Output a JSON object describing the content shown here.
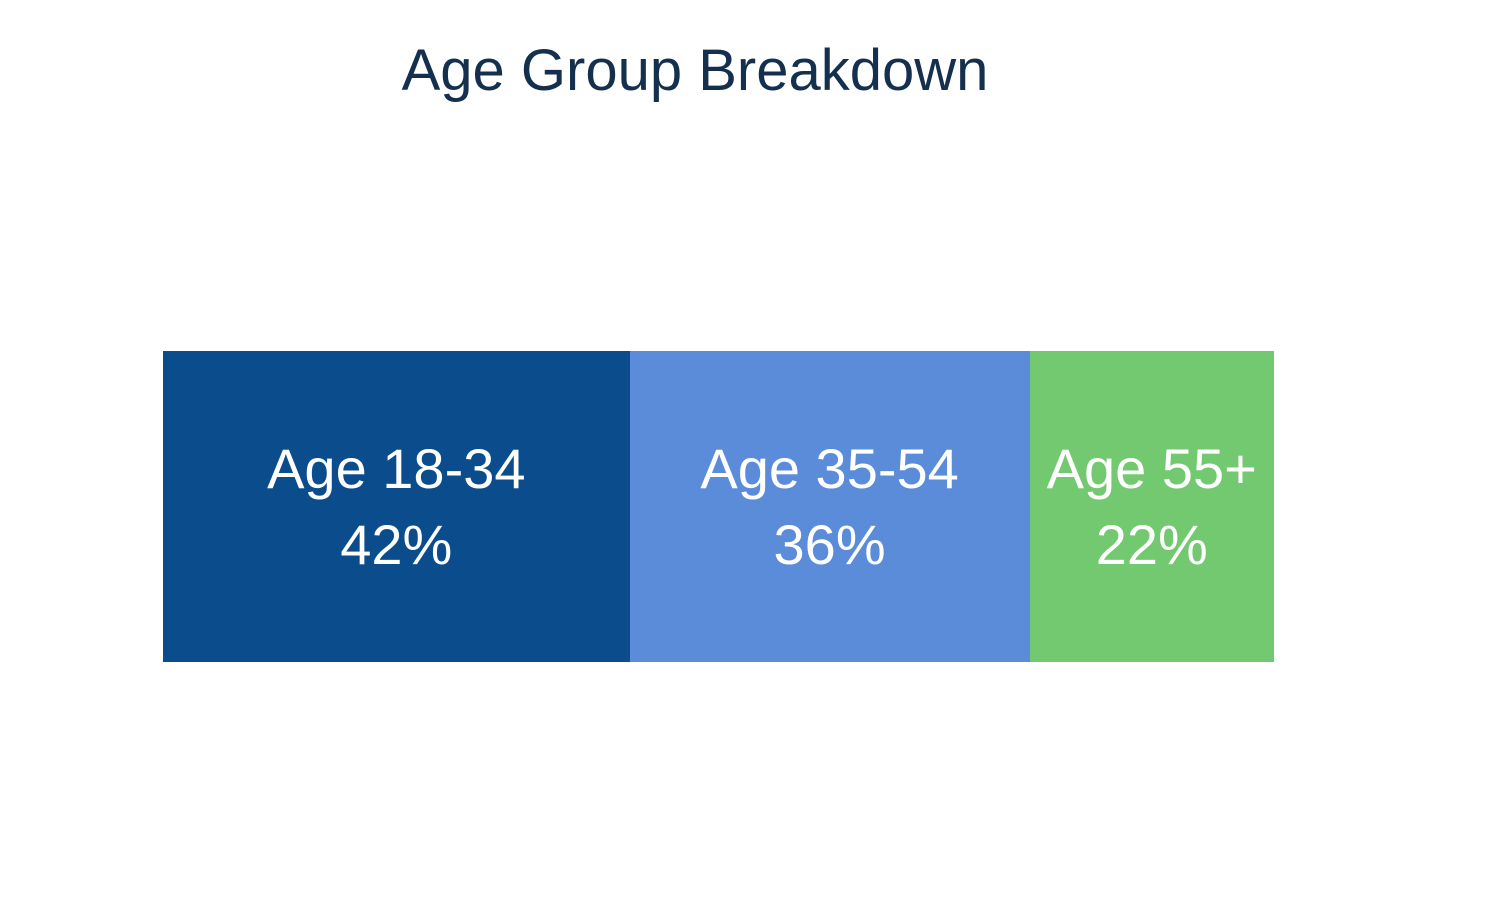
{
  "chart_data": {
    "type": "bar",
    "variant": "stacked-horizontal-single-bar",
    "title": "Age Group Breakdown",
    "categories": [
      "Age 18-34",
      "Age 35-54",
      "Age 55+"
    ],
    "values": [
      42,
      36,
      22
    ],
    "unit": "%",
    "legend": "none",
    "grid": false,
    "axes": "none",
    "background_color": "#ffffff",
    "title_color": "#14304e",
    "label_color": "#ffffff",
    "segments": [
      {
        "label": "Age 18-34",
        "value": 42,
        "value_label": "42%",
        "color": "#0b4d8c"
      },
      {
        "label": "Age 35-54",
        "value": 36,
        "value_label": "36%",
        "color": "#5b8cda"
      },
      {
        "label": "Age 55+",
        "value": 22,
        "value_label": "22%",
        "color": "#73c96f"
      }
    ]
  }
}
